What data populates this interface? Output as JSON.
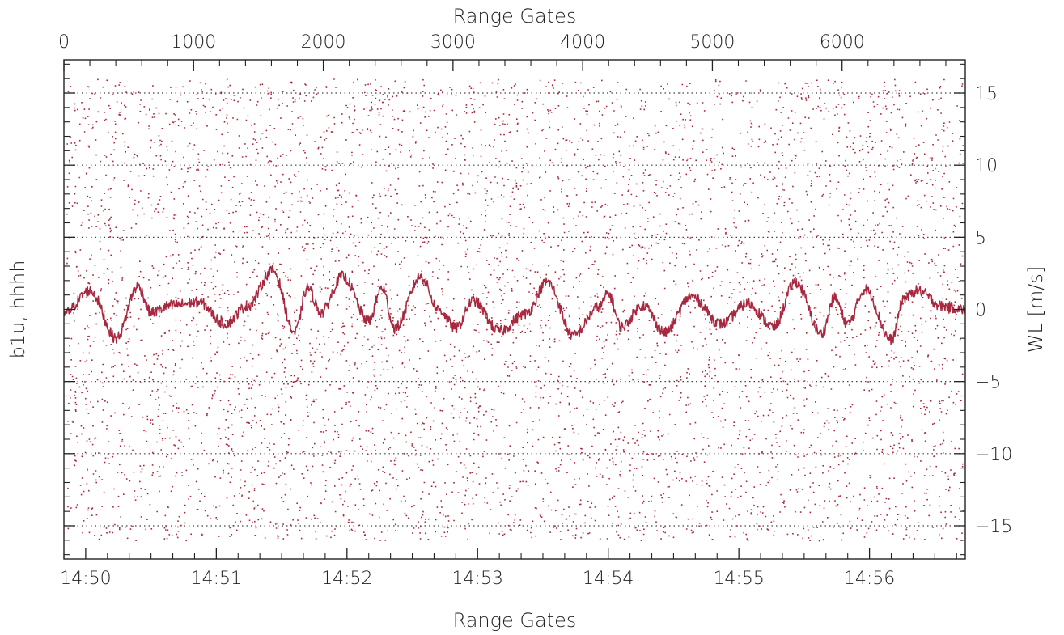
{
  "chart_data": {
    "type": "scatter",
    "xlabel_top": "Range Gates",
    "xlabel_bottom": "Range Gates",
    "ylabel_left": "b1u, hhhh",
    "ylabel_right": "WL [m/s]",
    "top_axis": {
      "range": [
        0,
        6950
      ],
      "ticks": [
        0,
        1000,
        2000,
        3000,
        4000,
        5000,
        6000
      ],
      "tick_labels": [
        "0",
        "1000",
        "2000",
        "3000",
        "4000",
        "5000",
        "6000"
      ]
    },
    "bottom_axis": {
      "range": [
        "14:49:50",
        "14:56:44"
      ],
      "ticks": [
        "14:50",
        "14:51",
        "14:52",
        "14:53",
        "14:54",
        "14:55",
        "14:56"
      ],
      "tick_labels": [
        "14:50",
        "14:51",
        "14:52",
        "14:53",
        "14:54",
        "14:55",
        "14:56"
      ]
    },
    "y_axis": {
      "range": [
        -17.3,
        17.3
      ],
      "ticks": [
        -15,
        -10,
        -5,
        0,
        5,
        10,
        15
      ],
      "tick_labels": [
        "−15",
        "−10",
        "−5",
        "0",
        "5",
        "10",
        "15"
      ]
    },
    "grid": "dotted horizontal at major y ticks",
    "colors": {
      "data": "#a8283f",
      "axis": "#222222",
      "grid": "#444444"
    },
    "series": [
      {
        "type": "scatter",
        "description_of_values": "velocity samples uniformly distributed between -16 and 16 m/s",
        "y_range": [
          -16,
          16
        ]
      },
      {
        "type": "line",
        "x": [
          "14:49:50",
          "14:50:02",
          "14:50:14",
          "14:50:24",
          "14:50:30",
          "14:50:40",
          "14:50:52",
          "14:51:04",
          "14:51:14",
          "14:51:26",
          "14:51:36",
          "14:51:42",
          "14:51:48",
          "14:51:58",
          "14:52:10",
          "14:52:16",
          "14:52:22",
          "14:52:34",
          "14:52:42",
          "14:52:50",
          "14:52:58",
          "14:53:10",
          "14:53:22",
          "14:53:32",
          "14:53:44",
          "14:53:56",
          "14:54:00",
          "14:54:06",
          "14:54:16",
          "14:54:26",
          "14:54:38",
          "14:54:52",
          "14:55:04",
          "14:55:16",
          "14:55:26",
          "14:55:38",
          "14:55:44",
          "14:55:50",
          "14:55:58",
          "14:56:10",
          "14:56:16",
          "14:56:22",
          "14:56:34",
          "14:56:44"
        ],
        "y": [
          -0.3,
          1.3,
          -2.0,
          1.6,
          -0.2,
          0.3,
          0.5,
          -1.0,
          0.2,
          2.7,
          -1.6,
          1.5,
          -0.2,
          2.3,
          -0.8,
          1.5,
          -1.3,
          2.3,
          0.0,
          -1.3,
          0.6,
          -1.5,
          -0.3,
          1.9,
          -1.8,
          0.2,
          1.1,
          -1.2,
          0.3,
          -1.6,
          0.9,
          -1.0,
          0.4,
          -1.2,
          1.9,
          -1.7,
          0.8,
          -1.0,
          1.4,
          -2.1,
          0.8,
          1.3,
          0.2,
          0.0
        ]
      }
    ]
  }
}
